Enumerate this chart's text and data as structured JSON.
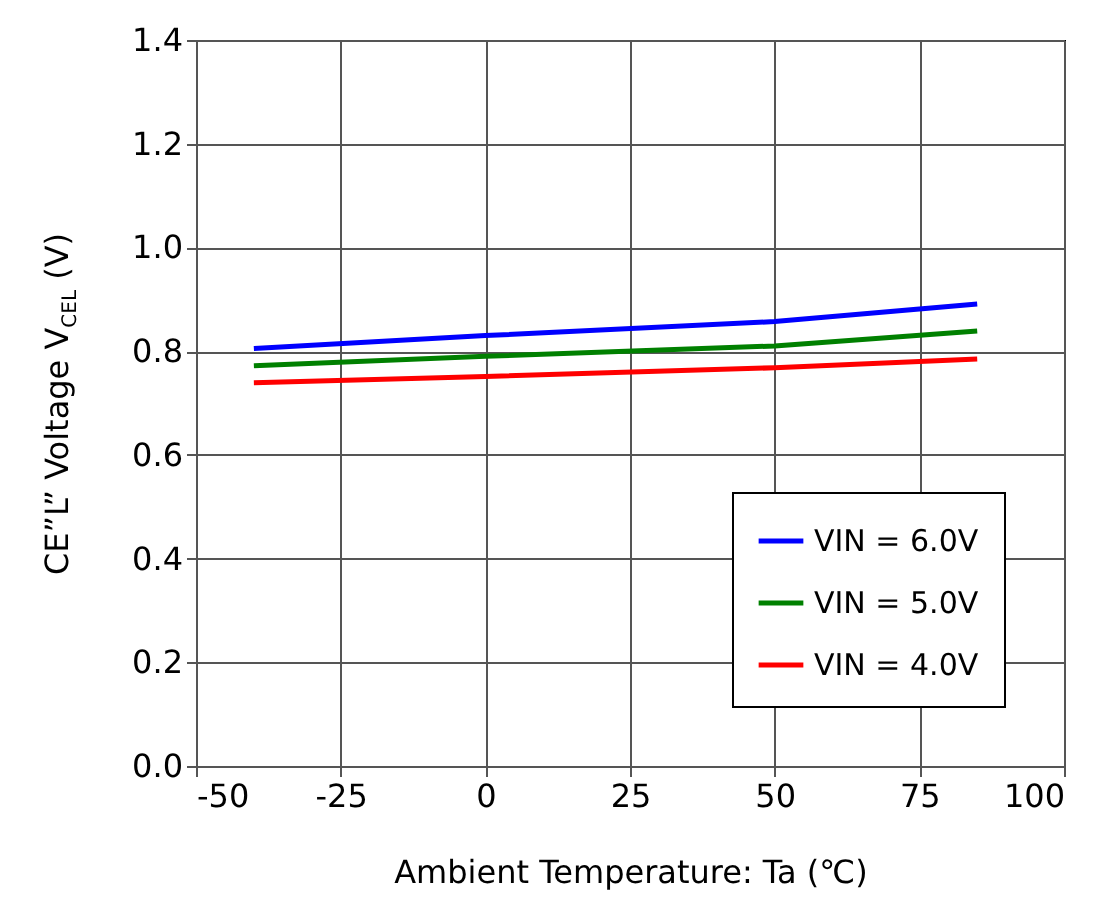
{
  "chart_data": {
    "type": "line",
    "xlabel": "Ambient Temperature: Ta (℃)",
    "ylabel": "CE”L” Voltage V$_{CEL}$ (V)",
    "x": [
      -40,
      0,
      50,
      85
    ],
    "series": [
      {
        "name": "VIN = 6.0V",
        "color": "#0000ff",
        "values": [
          0.805,
          0.83,
          0.857,
          0.891
        ]
      },
      {
        "name": "VIN = 5.0V",
        "color": "#008000",
        "values": [
          0.772,
          0.79,
          0.81,
          0.839
        ]
      },
      {
        "name": "VIN = 4.0V",
        "color": "#ff0000",
        "values": [
          0.739,
          0.751,
          0.768,
          0.785
        ]
      }
    ],
    "xlim": [
      -50,
      100
    ],
    "xticks": [
      -50,
      -25,
      0,
      25,
      50,
      75,
      100
    ],
    "ylim": [
      0,
      1.4
    ],
    "yticks": [
      {
        "value": 0,
        "label": "0.0"
      },
      {
        "value": 0.2,
        "label": "0.2"
      },
      {
        "value": 0.4,
        "label": "0.4"
      },
      {
        "value": 0.6,
        "label": "0.6"
      },
      {
        "value": 0.8,
        "label": "0.8"
      },
      {
        "value": 1.0,
        "label": "1.0"
      },
      {
        "value": 1.2,
        "label": "1.2"
      },
      {
        "value": 1.4,
        "label": "1.4"
      }
    ],
    "grid": true,
    "legend": "bottom right",
    "marker": "none",
    "line_style": "solid"
  }
}
